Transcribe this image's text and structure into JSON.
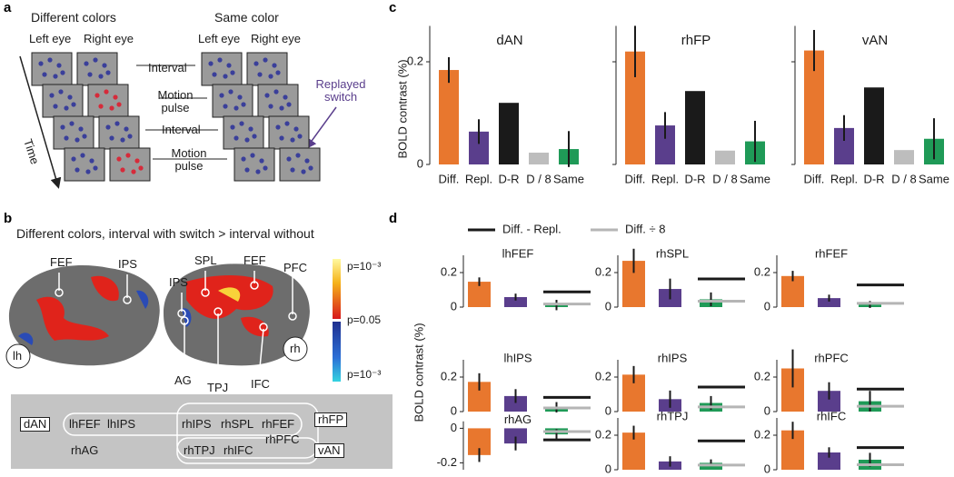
{
  "panel_labels": [
    "a",
    "b",
    "c",
    "d"
  ],
  "panel_a": {
    "headers": [
      "Different colors",
      "Same color"
    ],
    "eye_labels": [
      "Left eye",
      "Right eye",
      "Left eye",
      "Right eye"
    ],
    "events": [
      "Interval",
      "Motion pulse",
      "Interval",
      "Motion pulse"
    ],
    "time": "Time",
    "replayed": "Replayed switch"
  },
  "panel_b": {
    "title": "Different colors, interval with switch > interval without",
    "regions": [
      "FEF",
      "IPS",
      "SPL",
      "FEF",
      "PFC",
      "IPS",
      "AG",
      "TPJ",
      "IFC"
    ],
    "hemispheres": [
      "lh",
      "rh"
    ],
    "colorbar": [
      "p=10⁻³",
      "p=0.05",
      "p=10⁻³"
    ],
    "network": {
      "groups": [
        "dAN",
        "rhFP",
        "vAN"
      ],
      "nodes": [
        "lhFEF",
        "lhIPS",
        "rhIPS",
        "rhSPL",
        "rhFEF",
        "rhAG",
        "rhTPJ",
        "rhIFC",
        "rhPFC"
      ]
    }
  },
  "y_label": "BOLD contrast (%)",
  "legend_d": [
    {
      "name": "Diff. - Repl.",
      "color": "#1a1a1a"
    },
    {
      "name": "Diff. ÷ 8",
      "color": "#b5b5b5"
    }
  ],
  "chart_data": [
    {
      "type": "bar",
      "panel": "c",
      "title": "dAN",
      "categories": [
        "Diff.",
        "Repl.",
        "D-R",
        "D / 8",
        "Same"
      ],
      "values": [
        0.184,
        0.064,
        0.12,
        0.023,
        0.03
      ],
      "errors": [
        0.025,
        0.024,
        null,
        null,
        0.035
      ],
      "colors": [
        "#e8772e",
        "#5a3e8c",
        "#1a1a1a",
        "#bdbdbd",
        "#1f9a57"
      ],
      "ylim": [
        0,
        0.27
      ],
      "yticks": [
        0,
        0.2
      ],
      "tick_labels": true
    },
    {
      "type": "bar",
      "panel": "c",
      "title": "rhFP",
      "categories": [
        "Diff.",
        "Repl.",
        "D-R",
        "D / 8",
        "Same"
      ],
      "values": [
        0.22,
        0.076,
        0.143,
        0.027,
        0.045
      ],
      "errors": [
        0.05,
        0.026,
        null,
        null,
        0.04
      ],
      "colors": [
        "#e8772e",
        "#5a3e8c",
        "#1a1a1a",
        "#bdbdbd",
        "#1f9a57"
      ],
      "ylim": [
        0,
        0.27
      ],
      "yticks": [
        0,
        0.2
      ],
      "tick_labels": false
    },
    {
      "type": "bar",
      "panel": "c",
      "title": "vAN",
      "categories": [
        "Diff.",
        "Repl.",
        "D-R",
        "D / 8",
        "Same"
      ],
      "values": [
        0.222,
        0.071,
        0.15,
        0.028,
        0.05
      ],
      "errors": [
        0.04,
        0.025,
        null,
        null,
        0.04
      ],
      "colors": [
        "#e8772e",
        "#5a3e8c",
        "#1a1a1a",
        "#bdbdbd",
        "#1f9a57"
      ],
      "ylim": [
        0,
        0.27
      ],
      "yticks": [
        0,
        0.2
      ],
      "tick_labels": false
    },
    {
      "type": "bar",
      "panel": "d",
      "title": "lhFEF",
      "values": [
        0.147,
        0.058,
        0.012
      ],
      "errors": [
        0.025,
        0.02,
        0.03
      ],
      "reference_lines": [
        0.088,
        0.018
      ],
      "colors": [
        "#e8772e",
        "#5a3e8c",
        "#1f9a57"
      ],
      "ylim": [
        0,
        0.3
      ],
      "yticks": [
        0,
        0.2
      ]
    },
    {
      "type": "bar",
      "panel": "d",
      "title": "rhSPL",
      "values": [
        0.268,
        0.105,
        0.045
      ],
      "errors": [
        0.07,
        0.06,
        0.04
      ],
      "reference_lines": [
        0.163,
        0.034
      ],
      "colors": [
        "#e8772e",
        "#5a3e8c",
        "#1f9a57"
      ],
      "ylim": [
        0,
        0.3
      ],
      "yticks": [
        0,
        0.2
      ]
    },
    {
      "type": "bar",
      "panel": "d",
      "title": "rhFEF",
      "values": [
        0.18,
        0.052,
        0.015
      ],
      "errors": [
        0.03,
        0.02,
        0.02
      ],
      "reference_lines": [
        0.128,
        0.022
      ],
      "colors": [
        "#e8772e",
        "#5a3e8c",
        "#1f9a57"
      ],
      "ylim": [
        0,
        0.3
      ],
      "yticks": [
        0,
        0.2
      ]
    },
    {
      "type": "bar",
      "panel": "d",
      "title": "lhIPS",
      "values": [
        0.172,
        0.09,
        0.025
      ],
      "errors": [
        0.05,
        0.04,
        0.03
      ],
      "reference_lines": [
        0.082,
        0.021
      ],
      "colors": [
        "#e8772e",
        "#5a3e8c",
        "#1f9a57"
      ],
      "ylim": [
        0,
        0.3
      ],
      "yticks": [
        0,
        0.2
      ]
    },
    {
      "type": "bar",
      "panel": "d",
      "title": "rhIPS",
      "values": [
        0.214,
        0.072,
        0.05
      ],
      "errors": [
        0.05,
        0.05,
        0.04
      ],
      "reference_lines": [
        0.142,
        0.027
      ],
      "colors": [
        "#e8772e",
        "#5a3e8c",
        "#1f9a57"
      ],
      "ylim": [
        0,
        0.3
      ],
      "yticks": [
        0,
        0.2
      ]
    },
    {
      "type": "bar",
      "panel": "d",
      "title": "rhPFC",
      "values": [
        0.25,
        0.12,
        0.06
      ],
      "errors": [
        0.11,
        0.05,
        0.06
      ],
      "reference_lines": [
        0.13,
        0.031
      ],
      "colors": [
        "#e8772e",
        "#5a3e8c",
        "#1f9a57"
      ],
      "ylim": [
        0,
        0.3
      ],
      "yticks": [
        0,
        0.2
      ]
    },
    {
      "type": "bar",
      "panel": "d",
      "title": "rhAG",
      "values": [
        -0.155,
        -0.088,
        -0.035
      ],
      "errors": [
        0.04,
        0.04,
        0.03
      ],
      "reference_lines": [
        -0.067,
        -0.019
      ],
      "colors": [
        "#e8772e",
        "#5a3e8c",
        "#1f9a57"
      ],
      "ylim": [
        -0.24,
        0.04
      ],
      "yticks": [
        -0.2,
        0
      ]
    },
    {
      "type": "bar",
      "panel": "d",
      "title": "rhTPJ",
      "values": [
        0.215,
        0.048,
        0.04
      ],
      "errors": [
        0.04,
        0.03,
        0.02
      ],
      "reference_lines": [
        0.167,
        0.027
      ],
      "colors": [
        "#e8772e",
        "#5a3e8c",
        "#1f9a57"
      ],
      "ylim": [
        0,
        0.3
      ],
      "yticks": [
        0,
        0.2
      ]
    },
    {
      "type": "bar",
      "panel": "d",
      "title": "rhIFC",
      "values": [
        0.228,
        0.1,
        0.058
      ],
      "errors": [
        0.05,
        0.03,
        0.04
      ],
      "reference_lines": [
        0.128,
        0.029
      ],
      "colors": [
        "#e8772e",
        "#5a3e8c",
        "#1f9a57"
      ],
      "ylim": [
        0,
        0.3
      ],
      "yticks": [
        0,
        0.2
      ]
    }
  ]
}
